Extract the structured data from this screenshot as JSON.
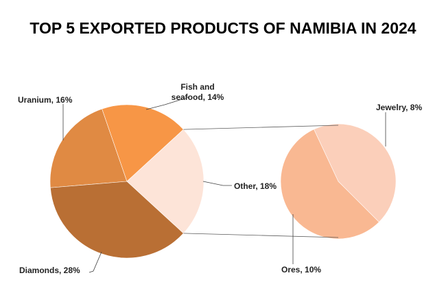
{
  "chart_data": {
    "type": "pie",
    "subtype": "pie-of-pie",
    "title": "TOP 5 EXPORTED PRODUCTS OF NAMIBIA IN 2024",
    "main_pie": [
      {
        "label": "Uranium, 16%",
        "value": 16,
        "color": "#E08A43"
      },
      {
        "label_lines": [
          "Fish and",
          "seafood, 14%"
        ],
        "value": 14,
        "color": "#F79646"
      },
      {
        "label": "Other, 18%",
        "value": 18,
        "color": "#FDE4D8"
      },
      {
        "label": "Diamonds, 28%",
        "value": 28,
        "color": "#B96F34"
      }
    ],
    "secondary_pie": [
      {
        "label": "Jewelry, 8%",
        "value": 8,
        "color": "#FBCFBA"
      },
      {
        "label": "Ores, 10%",
        "value": 10,
        "color": "#F9B892"
      }
    ],
    "legend": "none"
  }
}
